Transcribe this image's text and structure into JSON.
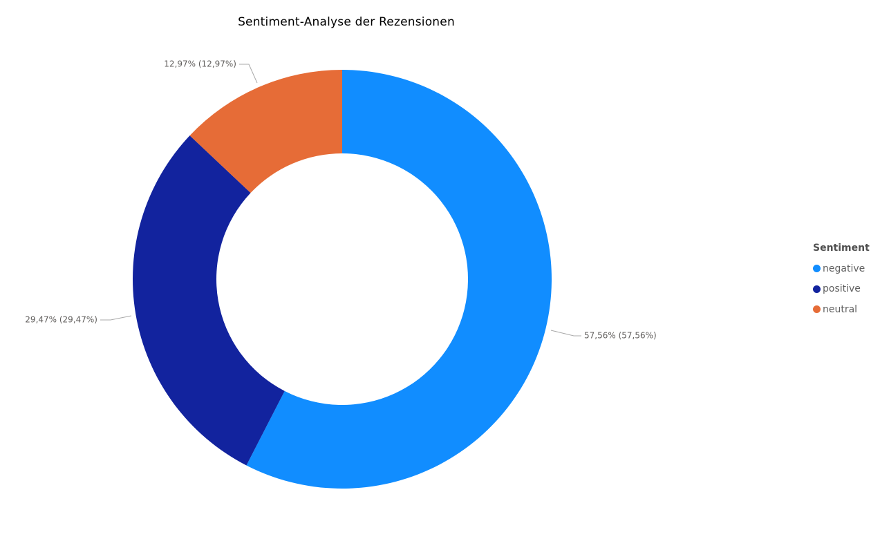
{
  "chart_data": {
    "type": "pie",
    "variant": "donut",
    "title": "Sentiment-Analyse der Rezensionen",
    "legend_title": "Sentiment",
    "legend_position": "right",
    "slices": [
      {
        "name": "negative",
        "value": 57.56,
        "label": "57,56% (57,56%)",
        "color": "#118DFF"
      },
      {
        "name": "positive",
        "value": 29.47,
        "label": "29,47% (29,47%)",
        "color": "#12239E"
      },
      {
        "name": "neutral",
        "value": 12.97,
        "label": "12,97% (12,97%)",
        "color": "#E66C37"
      }
    ]
  }
}
